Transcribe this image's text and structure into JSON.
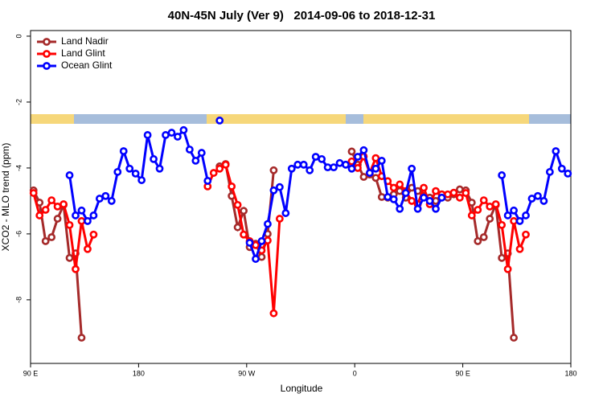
{
  "chart_data": {
    "type": "line",
    "title": "40N-45N July (Ver 9)   2014-09-06 to 2018-12-31",
    "x_label": "Longitude",
    "y_label": "XCO2 - MLO trend (ppm)",
    "xlim": [
      90,
      540
    ],
    "xticks": [
      {
        "value": 90,
        "label": "90 E"
      },
      180,
      {
        "value": 270,
        "label": "90 W"
      },
      {
        "value": 360,
        "label": "0"
      },
      {
        "value": 450,
        "label": "90 E"
      },
      {
        "value": 540,
        "label": "180"
      }
    ],
    "ylim": [
      -9.93,
      0.17
    ],
    "yticks": [
      0,
      -2,
      -4,
      -6,
      -8
    ],
    "legend": "top-left",
    "series": [
      {
        "name": "Land Nadir",
        "color": "#a52a2a",
        "x": [
          92.5,
          97.5,
          102.5,
          107.5,
          112.5,
          117.5,
          122.5,
          127.5,
          132.5,
          137.5,
          247.5,
          252.5,
          257.5,
          262.5,
          267.5,
          272.5,
          277.5,
          282.5,
          287.5,
          292.5,
          302.5,
          357.5,
          362.5,
          367.5,
          372.5,
          377.5,
          382.5,
          387.5,
          392.5,
          397.5,
          402.5,
          407.5,
          412.5,
          417.5,
          422.5,
          427.5,
          432.5,
          437.5,
          442.5,
          447.5,
          452.5,
          457.5,
          462.5,
          467.5,
          472.5,
          477.5,
          482.5,
          487.5,
          492.5
        ],
        "values": [
          -4.68,
          -5.05,
          -6.22,
          -6.1,
          -5.54,
          -5.12,
          -6.73,
          -6.59,
          -9.15,
          null,
          -3.95,
          -3.88,
          -4.85,
          -5.8,
          -5.3,
          -6.4,
          -6.3,
          -6.7,
          -6.0,
          -4.07,
          null,
          -3.5,
          -3.9,
          -4.27,
          -4.2,
          -4.3,
          -4.88,
          -4.9,
          -4.8,
          -4.7,
          -4.9,
          -4.6,
          -4.7,
          -4.85,
          -4.9,
          -5.0,
          -4.8,
          -4.9,
          -4.8,
          -4.65,
          -4.68,
          -5.05,
          -6.22,
          -6.1,
          -5.54,
          -5.12,
          -6.73,
          -6.59,
          -9.15
        ]
      },
      {
        "name": "Land Glint",
        "color": "#ff0000",
        "x": [
          92.5,
          97.5,
          102.5,
          107.5,
          112.5,
          117.5,
          122.5,
          127.5,
          132.5,
          137.5,
          142.5,
          147.5,
          237.5,
          242.5,
          247.5,
          252.5,
          257.5,
          262.5,
          267.5,
          272.5,
          277.5,
          282.5,
          287.5,
          292.5,
          297.5,
          302.5,
          357.5,
          362.5,
          367.5,
          372.5,
          377.5,
          382.5,
          387.5,
          392.5,
          397.5,
          402.5,
          407.5,
          412.5,
          417.5,
          422.5,
          427.5,
          432.5,
          437.5,
          442.5,
          447.5,
          452.5,
          457.5,
          462.5,
          467.5,
          472.5,
          477.5,
          482.5,
          487.5,
          492.5,
          497.5,
          502.5
        ],
        "values": [
          -4.76,
          -5.44,
          -5.27,
          -4.98,
          -5.17,
          -5.1,
          -5.73,
          -7.07,
          -5.61,
          -6.46,
          -6.02,
          null,
          -4.56,
          -4.15,
          -4.02,
          -3.9,
          -4.56,
          -5.12,
          -6.02,
          -6.22,
          -6.34,
          -6.5,
          -6.2,
          -8.41,
          -5.54,
          null,
          -3.8,
          -4.0,
          -3.65,
          -4.15,
          -3.7,
          -4.25,
          -4.4,
          -4.6,
          -4.5,
          -4.7,
          -5.0,
          -5.1,
          -4.6,
          -5.1,
          -4.7,
          -4.8,
          -4.8,
          -4.75,
          -4.9,
          -4.76,
          -5.44,
          -5.27,
          -4.98,
          -5.17,
          -5.1,
          -5.73,
          -7.07,
          -5.61,
          -6.46,
          -6.02
        ]
      },
      {
        "name": "Ocean Glint",
        "color": "#0000ff",
        "x": [
          122.5,
          127.5,
          132.5,
          137.5,
          142.5,
          147.5,
          152.5,
          157.5,
          162.5,
          167.5,
          172.5,
          177.5,
          182.5,
          187.5,
          192.5,
          197.5,
          202.5,
          207.5,
          212.5,
          217.5,
          222.5,
          227.5,
          232.5,
          237.5,
          242.5,
          247.5,
          252.5,
          272.5,
          277.5,
          282.5,
          287.5,
          292.5,
          297.5,
          302.5,
          307.5,
          312.5,
          317.5,
          322.5,
          327.5,
          332.5,
          337.5,
          342.5,
          347.5,
          352.5,
          357.5,
          362.5,
          367.5,
          372.5,
          377.5,
          382.5,
          387.5,
          392.5,
          397.5,
          402.5,
          407.5,
          412.5,
          417.5,
          422.5,
          427.5,
          432.5,
          437.5,
          482.5,
          487.5,
          492.5,
          497.5,
          502.5,
          507.5,
          512.5,
          517.5,
          522.5,
          527.5,
          532.5,
          537.5
        ],
        "values": [
          -4.22,
          -5.44,
          -5.29,
          -5.61,
          -5.44,
          -4.93,
          -4.85,
          -5.0,
          -4.12,
          -3.49,
          -4.02,
          -4.17,
          -4.37,
          -3.0,
          -3.73,
          -4.02,
          -3.0,
          -2.93,
          -3.05,
          -2.85,
          -3.44,
          -3.78,
          -3.54,
          -4.39,
          null,
          -2.56,
          null,
          -6.27,
          -6.76,
          -6.22,
          -5.7,
          -4.68,
          -4.58,
          -5.37,
          -4.02,
          -3.9,
          -3.9,
          -4.07,
          -3.66,
          -3.73,
          -3.98,
          -3.98,
          -3.85,
          -3.9,
          -4.02,
          -3.66,
          -3.46,
          -4.15,
          -4.02,
          -3.78,
          -4.88,
          -4.95,
          -5.24,
          -4.76,
          -4.02,
          -5.24,
          -4.9,
          -5.0,
          -5.24,
          -4.9,
          null,
          -4.22,
          -5.44,
          -5.29,
          -5.61,
          -5.44,
          -4.93,
          -4.85,
          -5.0,
          -4.12,
          -3.49,
          -4.02,
          -4.17
        ]
      }
    ]
  }
}
